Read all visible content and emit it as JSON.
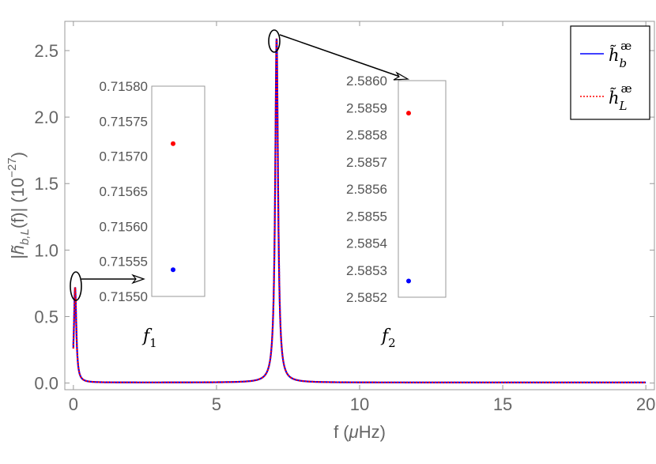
{
  "chart_data": [
    {
      "type": "line",
      "xlabel": "f (μHz)",
      "ylabel": "|h̃_{b,L}(f)| (10^{−27})",
      "xlim": [
        -0.3,
        20.3
      ],
      "ylim": [
        -0.05,
        2.72
      ],
      "x_ticks": [
        "0",
        "5",
        "10",
        "15",
        "20"
      ],
      "y_ticks": [
        "0.0",
        "0.5",
        "1.0",
        "1.5",
        "2.0",
        "2.5"
      ],
      "x_tick_values": [
        0,
        5,
        10,
        15,
        20
      ],
      "y_tick_values": [
        0.0,
        0.5,
        1.0,
        1.5,
        2.0,
        2.5
      ],
      "peaks": [
        {
          "label": "f1",
          "f": 0.06,
          "amplitude": 0.7157
        },
        {
          "label": "f2",
          "f": 7.1,
          "amplitude": 2.5856
        }
      ],
      "series": [
        {
          "name": "h̃_b^æ",
          "color": "#0000ff",
          "style": "solid"
        },
        {
          "name": "h̃_L^æ",
          "color": "#ff0000",
          "style": "dotted"
        }
      ],
      "legend_placement": "top-right",
      "grid": false
    },
    {
      "type": "scatter",
      "label": "f1",
      "ylim": [
        0.7155,
        0.7158
      ],
      "y_ticks": [
        "0.71580",
        "0.71575",
        "0.71570",
        "0.71565",
        "0.71560",
        "0.71555",
        "0.71550"
      ],
      "points": [
        {
          "series": "h̃_L^æ",
          "y": 0.715718,
          "color": "#ff0000"
        },
        {
          "series": "h̃_b^æ",
          "y": 0.715538,
          "color": "#0000ff"
        }
      ]
    },
    {
      "type": "scatter",
      "label": "f2",
      "ylim": [
        2.5852,
        2.586
      ],
      "y_ticks": [
        "2.5860",
        "2.5859",
        "2.5858",
        "2.5857",
        "2.5856",
        "2.5855",
        "2.5854",
        "2.5853",
        "2.5852"
      ],
      "points": [
        {
          "series": "h̃_L^æ",
          "y": 2.58588,
          "color": "#ff0000"
        },
        {
          "series": "h̃_b^æ",
          "y": 2.58526,
          "color": "#0000ff"
        }
      ]
    }
  ],
  "legend": {
    "items": [
      {
        "base": "h̃",
        "sub": "b",
        "sup": "æ"
      },
      {
        "base": "h̃",
        "sub": "L",
        "sup": "æ"
      }
    ]
  },
  "labels": {
    "f1": "f",
    "f1_sub": "1",
    "f2": "f",
    "f2_sub": "2"
  },
  "axes": {
    "xlabel_pre": "f (",
    "xlabel_mu": "μ",
    "xlabel_post": "Hz)",
    "ylabel_a": "|h̃",
    "ylabel_sub": "b,L",
    "ylabel_b": "(f)| (10",
    "ylabel_sup": "−27",
    "ylabel_c": ")"
  }
}
